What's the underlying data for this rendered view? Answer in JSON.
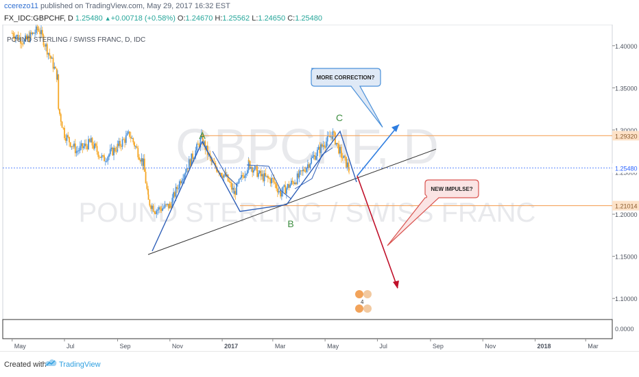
{
  "header": {
    "user": "ccerezo11",
    "published_text": " published on TradingView.com, May 29, 2017 16:32 EST",
    "symbol_line": "FX_IDC:GBPCHF, D",
    "last": "1.25480",
    "change": "+0.00718 (+0.58%)",
    "o_label": "O:",
    "o_value": "1.24670",
    "h_label": "H:",
    "h_value": "1.25562",
    "l_label": "L:",
    "l_value": "1.24650",
    "c_label": "C:",
    "c_value": "1.25480",
    "arrow": "▲"
  },
  "footer": {
    "created_with": "Created with",
    "brand": "TradingView"
  },
  "chart_data": {
    "type": "candlestick",
    "title": "POUND STERLING / SWISS FRANC, D, IDC",
    "watermark_symbol": "GBPCHF, D",
    "watermark_name": "POUND STERLING / SWISS FRANC",
    "x_ticks": [
      "May",
      "Jul",
      "Sep",
      "Nov",
      "2017",
      "Mar",
      "May",
      "Jul",
      "Sep",
      "Nov",
      "2018",
      "Mar"
    ],
    "y_ticks": [
      "1.40000",
      "1.35000",
      "1.30000",
      "1.25000",
      "1.20000",
      "1.15000",
      "1.10000"
    ],
    "indicator_tick": "0.0000",
    "ylim": [
      1.075,
      1.425
    ],
    "price_labels": [
      {
        "text": "1.29320",
        "value": 1.2932,
        "color": "#f5a45d"
      },
      {
        "text": "1.25480",
        "value": 1.2548,
        "color": "#2962ff"
      },
      {
        "text": "1.21014",
        "value": 1.21014,
        "color": "#f5a45d"
      }
    ],
    "wave_labels": [
      "A",
      "B",
      "C"
    ],
    "callouts": [
      {
        "text": "MORE CORRECTION?",
        "color": "#4a90d9"
      },
      {
        "text": "NEW IMPULSE?",
        "color": "#d9534f"
      }
    ],
    "colors": {
      "up": "#4a90d9",
      "down": "#f5a623",
      "wave_label": "#3e8e41",
      "trend": "#333333"
    },
    "series": [
      {
        "date": "2016-05-01",
        "close": 1.415
      },
      {
        "date": "2016-05-15",
        "close": 1.405
      },
      {
        "date": "2016-06-01",
        "close": 1.42
      },
      {
        "date": "2016-06-15",
        "close": 1.385
      },
      {
        "date": "2016-06-23",
        "close": 1.362
      },
      {
        "date": "2016-06-24",
        "close": 1.325
      },
      {
        "date": "2016-07-01",
        "close": 1.295
      },
      {
        "date": "2016-07-15",
        "close": 1.275
      },
      {
        "date": "2016-08-01",
        "close": 1.285
      },
      {
        "date": "2016-08-15",
        "close": 1.265
      },
      {
        "date": "2016-09-01",
        "close": 1.28
      },
      {
        "date": "2016-09-15",
        "close": 1.295
      },
      {
        "date": "2016-10-01",
        "close": 1.26
      },
      {
        "date": "2016-10-07",
        "close": 1.215
      },
      {
        "date": "2016-10-15",
        "close": 1.205
      },
      {
        "date": "2016-11-01",
        "close": 1.21
      },
      {
        "date": "2016-11-15",
        "close": 1.245
      },
      {
        "date": "2016-12-01",
        "close": 1.275
      },
      {
        "date": "2016-12-08",
        "close": 1.29
      },
      {
        "date": "2016-12-20",
        "close": 1.26
      },
      {
        "date": "2017-01-05",
        "close": 1.245
      },
      {
        "date": "2017-01-15",
        "close": 1.225
      },
      {
        "date": "2017-02-01",
        "close": 1.26
      },
      {
        "date": "2017-02-15",
        "close": 1.245
      },
      {
        "date": "2017-03-01",
        "close": 1.24
      },
      {
        "date": "2017-03-10",
        "close": 1.225
      },
      {
        "date": "2017-04-01",
        "close": 1.245
      },
      {
        "date": "2017-04-15",
        "close": 1.265
      },
      {
        "date": "2017-05-01",
        "close": 1.285
      },
      {
        "date": "2017-05-10",
        "close": 1.295
      },
      {
        "date": "2017-05-20",
        "close": 1.27
      },
      {
        "date": "2017-05-29",
        "close": 1.2548
      }
    ]
  }
}
